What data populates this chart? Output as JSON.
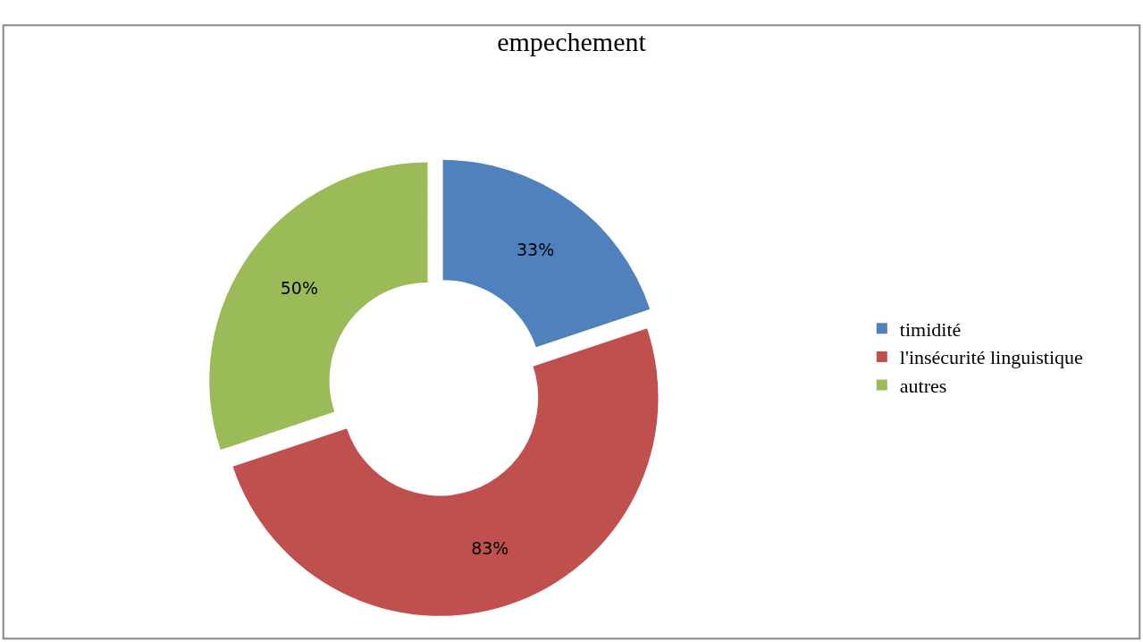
{
  "chart_data": {
    "type": "donut",
    "title": "empechement",
    "categories": [
      "timidité",
      "l'insécurité linguistique",
      "autres"
    ],
    "values": [
      33,
      83,
      50
    ],
    "value_labels": [
      "33%",
      "83%",
      "50%"
    ],
    "colors": [
      "#4f81bd",
      "#c0504d",
      "#9bbb59"
    ],
    "legend": "right"
  }
}
